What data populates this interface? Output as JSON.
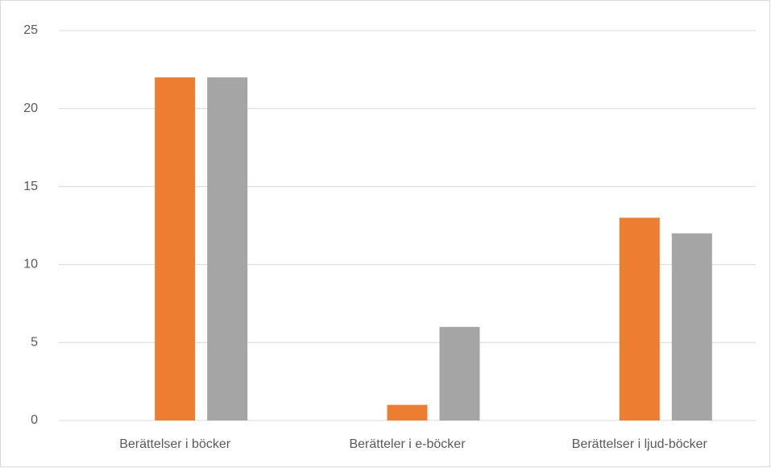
{
  "chart_data": {
    "type": "bar",
    "categories": [
      "Berättelser i böcker",
      "Berätteler i e-böcker",
      "Berättelser i ljud-böcker"
    ],
    "series": [
      {
        "color": "#4472c4",
        "values": [
          0,
          0,
          0
        ]
      },
      {
        "color": "#ed7d31",
        "values": [
          22,
          1,
          13
        ]
      },
      {
        "color": "#a5a5a5",
        "values": [
          22,
          6,
          12
        ]
      }
    ],
    "ylim": [
      0,
      25
    ],
    "yticks": [
      0,
      5,
      10,
      15,
      20,
      25
    ],
    "grid": true
  }
}
